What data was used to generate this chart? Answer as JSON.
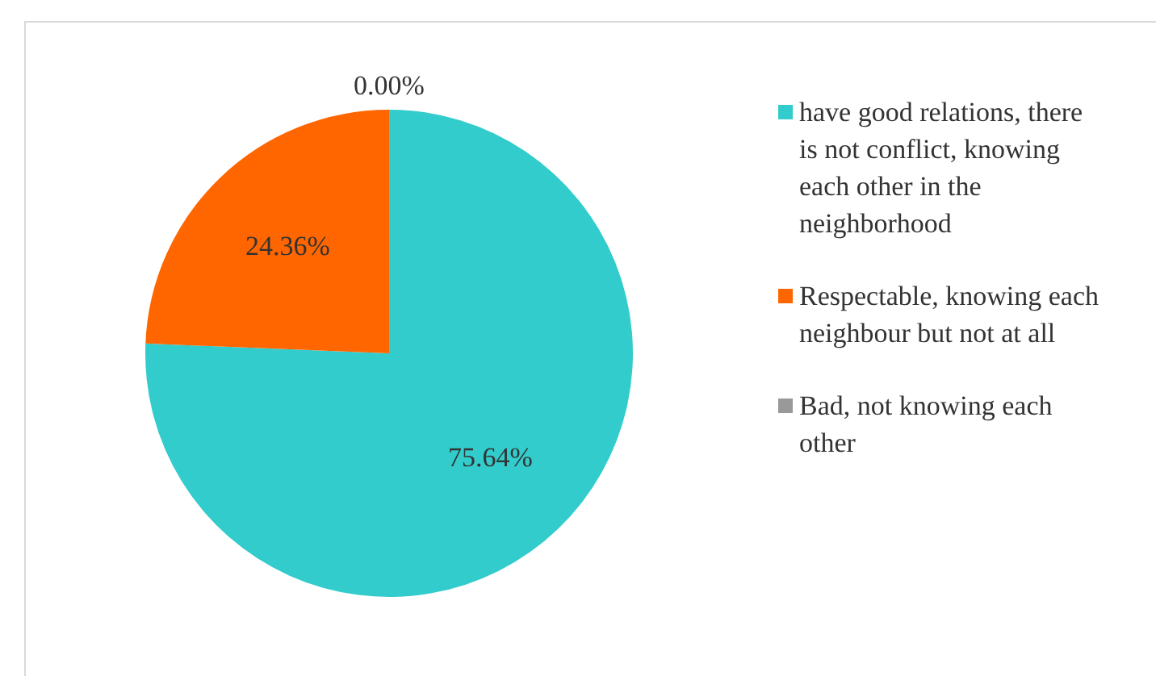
{
  "chart_data": {
    "type": "pie",
    "categories": [
      "have good relations, there is not conflict, knowing each other in the neighborhood",
      "Respectable, knowing each neighbour but not at all",
      "Bad, not knowing each other"
    ],
    "values": [
      75.64,
      24.36,
      0.0
    ],
    "colors": [
      "#33cccc",
      "#ff6600",
      "#999999"
    ],
    "value_labels": [
      "75.64%",
      "24.36%",
      "0.00%"
    ],
    "legend": "right"
  }
}
